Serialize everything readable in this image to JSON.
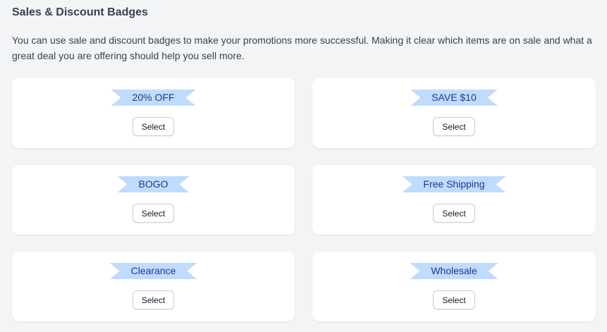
{
  "title": "Sales & Discount Badges",
  "description": "You can use sale and discount badges to make your promotions more successful. Making it clear which items are on sale and what a great deal you are offering should help you sell more.",
  "badge_color": "#bfdbfe",
  "badge_text_color": "#1e3a8a",
  "badges": [
    {
      "label": "20% OFF",
      "button": "Select"
    },
    {
      "label": "SAVE $10",
      "button": "Select"
    },
    {
      "label": "BOGO",
      "button": "Select"
    },
    {
      "label": "Free Shipping",
      "button": "Select"
    },
    {
      "label": "Clearance",
      "button": "Select"
    },
    {
      "label": "Wholesale",
      "button": "Select"
    }
  ]
}
